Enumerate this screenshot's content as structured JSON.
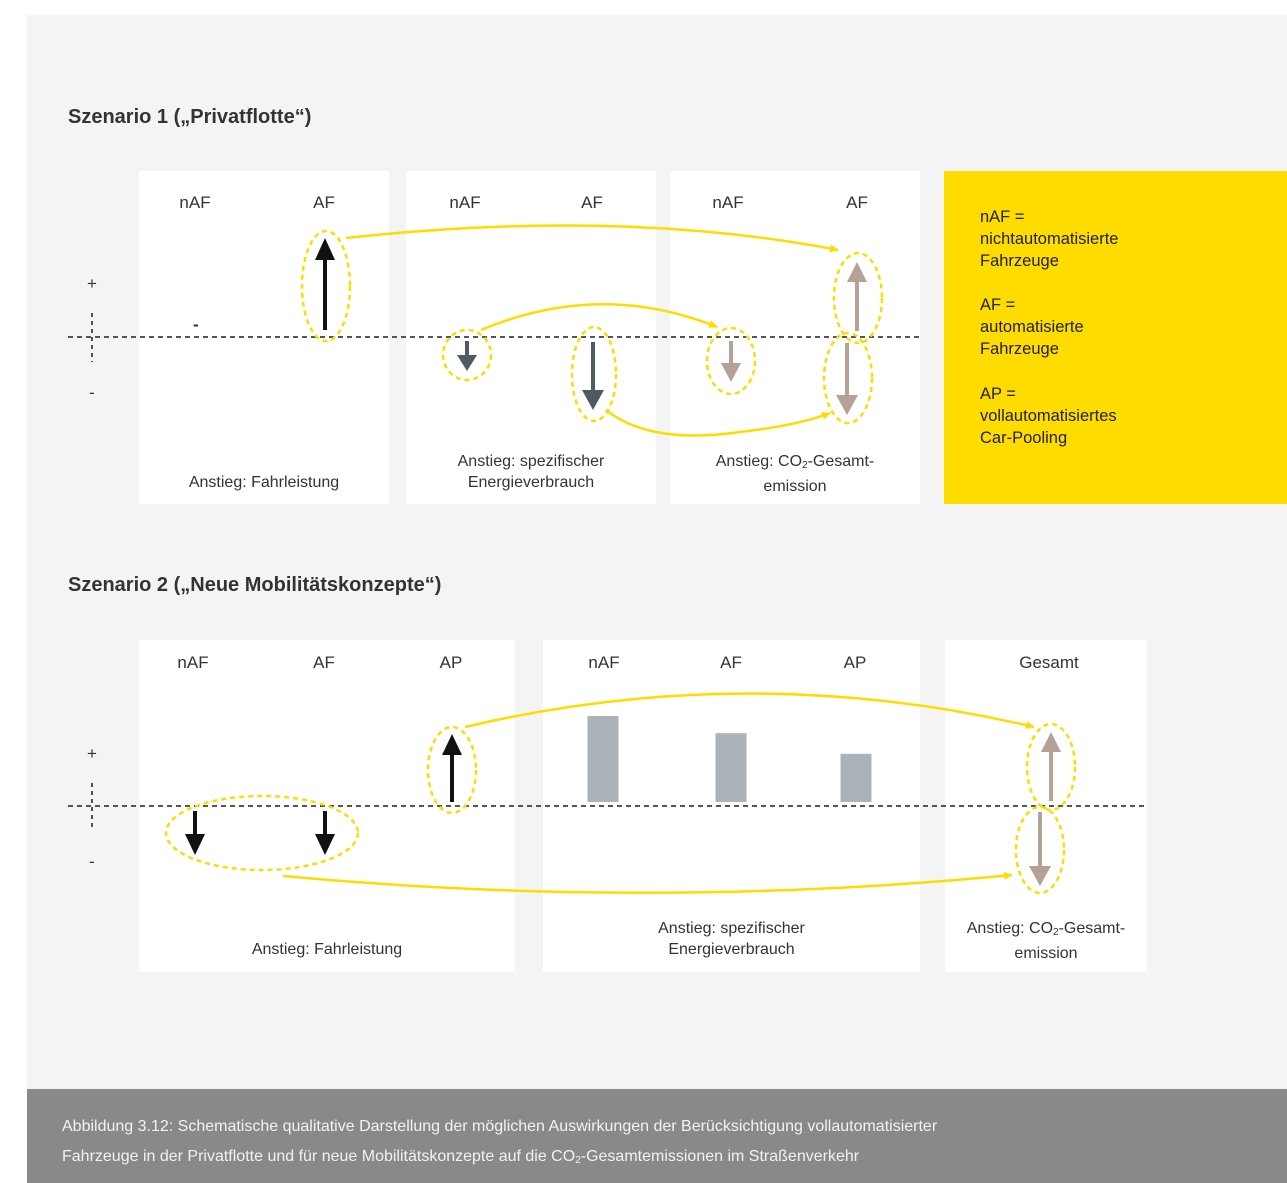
{
  "scenario1": {
    "title": "Szenario 1 („Privatflotte“)",
    "panels": [
      {
        "cols": [
          "nAF",
          "AF"
        ],
        "label": "Anstieg: Fahrleistung"
      },
      {
        "cols": [
          "nAF",
          "AF"
        ],
        "label_line1": "Anstieg: spezifischer",
        "label_line2": "Energieverbrauch"
      },
      {
        "cols": [
          "nAF",
          "AF"
        ],
        "label_line1_pre": "Anstieg: CO",
        "label_line1_sub": "2",
        "label_line1_post": "-Gesamt-",
        "label_line2": "emission"
      }
    ],
    "dash_mark": "-"
  },
  "scenario2": {
    "title": "Szenario 2 („Neue Mobilitätskonzepte“)",
    "panels": [
      {
        "cols": [
          "nAF",
          "AF",
          "AP"
        ],
        "label": "Anstieg: Fahrleistung"
      },
      {
        "cols": [
          "nAF",
          "AF",
          "AP"
        ],
        "label_line1": "Anstieg: spezifischer",
        "label_line2": "Energieverbrauch"
      },
      {
        "cols": [
          "Gesamt"
        ],
        "label_line1_pre": "Anstieg: CO",
        "label_line1_sub": "2",
        "label_line1_post": "-Gesamt-",
        "label_line2": "emission"
      }
    ]
  },
  "axis": {
    "plus": "+",
    "minus": "-"
  },
  "legend": [
    [
      "nAF =",
      "nichtautomatisierte",
      "Fahrzeuge"
    ],
    [
      "AF =",
      "automatisierte",
      "Fahrzeuge"
    ],
    [
      "AP =",
      "vollautomatisiertes",
      "Car-Pooling"
    ]
  ],
  "caption": {
    "line1": "Abbildung 3.12: Schematische qualitative Darstellung der möglichen Auswirkungen der Berücksichtigung vollautomatisierter",
    "line2_pre": "Fahrzeuge in der Privatflotte und für neue Mobilitätskonzepte auf die CO",
    "line2_sub": "2",
    "line2_post": "-Gesamtemissionen im Straßenverkehr"
  },
  "energy_bars": {
    "nAF": 1.0,
    "AF": 0.8,
    "AP": 0.56
  },
  "colors": {
    "yellow": "#ffdc00",
    "black": "#111111",
    "slate": "#4f5b62",
    "taupe": "#b5a195",
    "bar": "#aab3b9",
    "dash": "#555555"
  }
}
